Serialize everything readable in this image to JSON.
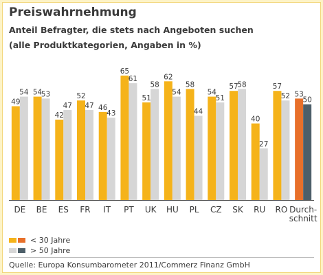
{
  "title": "Preiswahrnehmung",
  "subtitle": "Anteil Befragter, die stets nach Angeboten suchen",
  "subtitle2": "(alle Produktkategorien, Angaben in %)",
  "source": "Quelle: Europa Konsumbarometer 2011/Commerz Finanz GmbH",
  "colors": {
    "under30": "#f5b31a",
    "over50": "#d6d6d6",
    "under30_avg": "#e8702a",
    "over50_avg": "#4d5f69",
    "axis": "#555555"
  },
  "legend": [
    {
      "label": "< 30 Jahre",
      "colors": [
        "#f5b31a",
        "#e8702a"
      ]
    },
    {
      "label": "> 50 Jahre",
      "colors": [
        "#d6d6d6",
        "#4d5f69"
      ]
    }
  ],
  "chart_data": {
    "type": "bar",
    "categories": [
      "DE",
      "BE",
      "ES",
      "FR",
      "IT",
      "PT",
      "UK",
      "HU",
      "PL",
      "CZ",
      "SK",
      "RU",
      "RO",
      "Durch-\nschnitt"
    ],
    "series": [
      {
        "name": "< 30 Jahre",
        "values": [
          49,
          54,
          42,
          52,
          46,
          65,
          51,
          62,
          58,
          54,
          57,
          40,
          57,
          53
        ]
      },
      {
        "name": "> 50 Jahre",
        "values": [
          54,
          53,
          47,
          47,
          43,
          61,
          58,
          54,
          44,
          51,
          58,
          27,
          52,
          50
        ]
      }
    ],
    "title": "Preiswahrnehmung",
    "xlabel": "",
    "ylabel": "",
    "ylim": [
      0,
      70
    ],
    "grid": false,
    "legend_position": "bottom-left"
  }
}
